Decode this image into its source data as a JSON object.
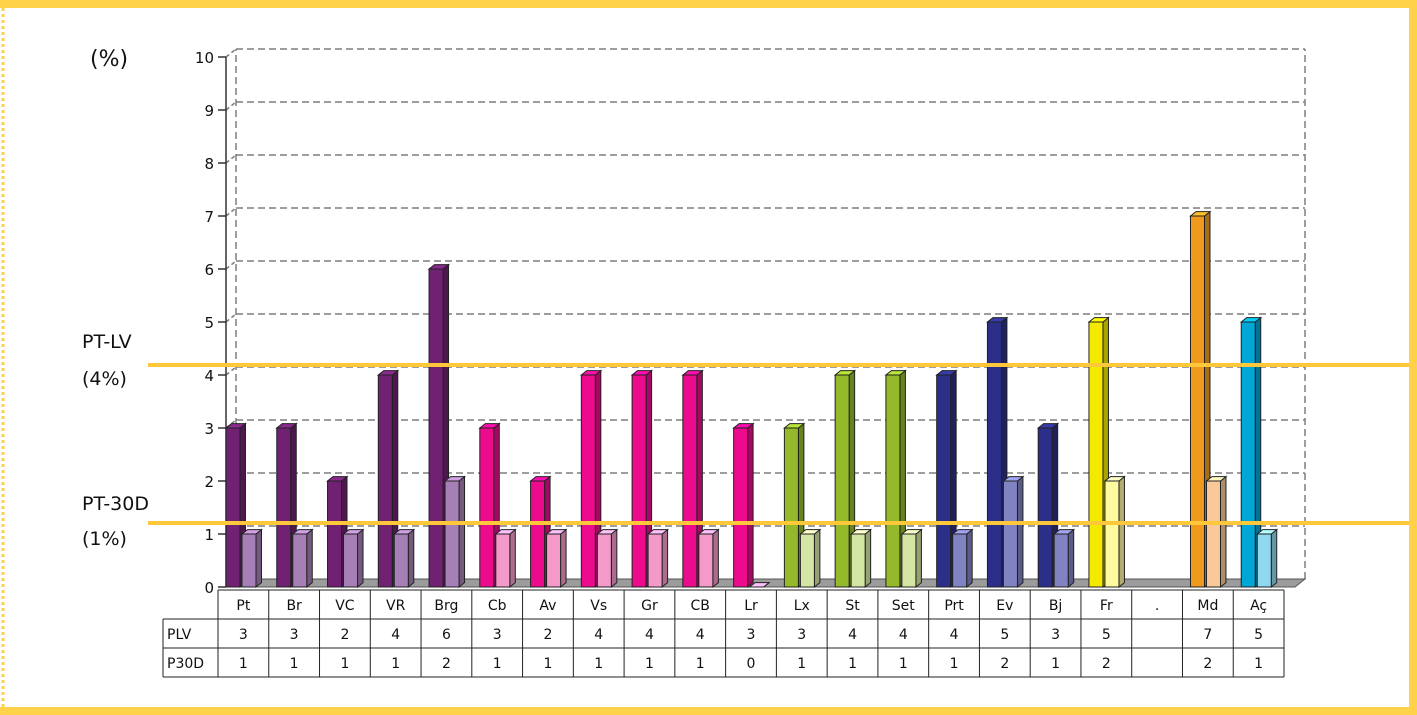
{
  "colors": {
    "frame": "#ffd24a",
    "threshold": "#ffc83a",
    "grid": "#7f7f7f",
    "axis": "#333333",
    "purple": "#702172",
    "purple_light": "#a67fb6",
    "magenta": "#ec0b8c",
    "magenta_light": "#f49ac9",
    "green": "#94b92b",
    "green_light": "#d5e6a4",
    "navy": "#2c2f88",
    "navy_light": "#8182c2",
    "yellow": "#f4ea00",
    "yellow_light": "#fff9a0",
    "orange": "#ef9a1f",
    "orange_light": "#f9c99a",
    "cyan": "#00a6d6",
    "cyan_light": "#8fd8ef"
  },
  "chart_data": {
    "type": "bar",
    "ylabel": "(%)",
    "ylim": [
      0,
      10
    ],
    "yticks": [
      "0",
      "1",
      "2",
      "3",
      "4",
      "5",
      "6",
      "7",
      "8",
      "9",
      "10"
    ],
    "grid": true,
    "categories": [
      "Pt",
      "Br",
      "VC",
      "VR",
      "Brg",
      "Cb",
      "Av",
      "Vs",
      "Gr",
      "CB",
      "Lr",
      "Lx",
      "St",
      "Set",
      "Prt",
      "Ev",
      "Bj",
      "Fr",
      ".",
      "Md",
      "Aç"
    ],
    "groups": [
      "purple",
      "purple",
      "purple",
      "purple",
      "purple",
      "magenta",
      "magenta",
      "magenta",
      "magenta",
      "magenta",
      "magenta",
      "green",
      "green",
      "green",
      "navy",
      "navy",
      "navy",
      "yellow",
      "none",
      "orange",
      "cyan"
    ],
    "series": [
      {
        "name": "PLV",
        "values": [
          3,
          3,
          2,
          4,
          6,
          3,
          2,
          4,
          4,
          4,
          3,
          3,
          4,
          4,
          4,
          5,
          3,
          5,
          null,
          7,
          5
        ]
      },
      {
        "name": "P30D",
        "values": [
          1,
          1,
          1,
          1,
          2,
          1,
          1,
          1,
          1,
          1,
          0,
          1,
          1,
          1,
          1,
          2,
          1,
          2,
          null,
          2,
          1
        ]
      }
    ],
    "table_labels": {
      "PLV": [
        "3",
        "3",
        "2",
        "4",
        "6",
        "3",
        "2",
        "4",
        "4",
        "4",
        "3",
        "3",
        "4",
        "4",
        "4",
        "5",
        "3",
        "5",
        "",
        "7",
        "5"
      ],
      "P30D": [
        "1",
        "1",
        "1",
        "1",
        "2",
        "1",
        "1",
        "1",
        "1",
        "1",
        "0",
        "1",
        "1",
        "1",
        "1",
        "2",
        "1",
        "2",
        "",
        "2",
        "1"
      ]
    },
    "thresholds": [
      {
        "label": "PT-LV",
        "sub": "(4%)",
        "value": 4
      },
      {
        "label": "PT-30D",
        "sub": "(1%)",
        "value": 1
      }
    ]
  }
}
